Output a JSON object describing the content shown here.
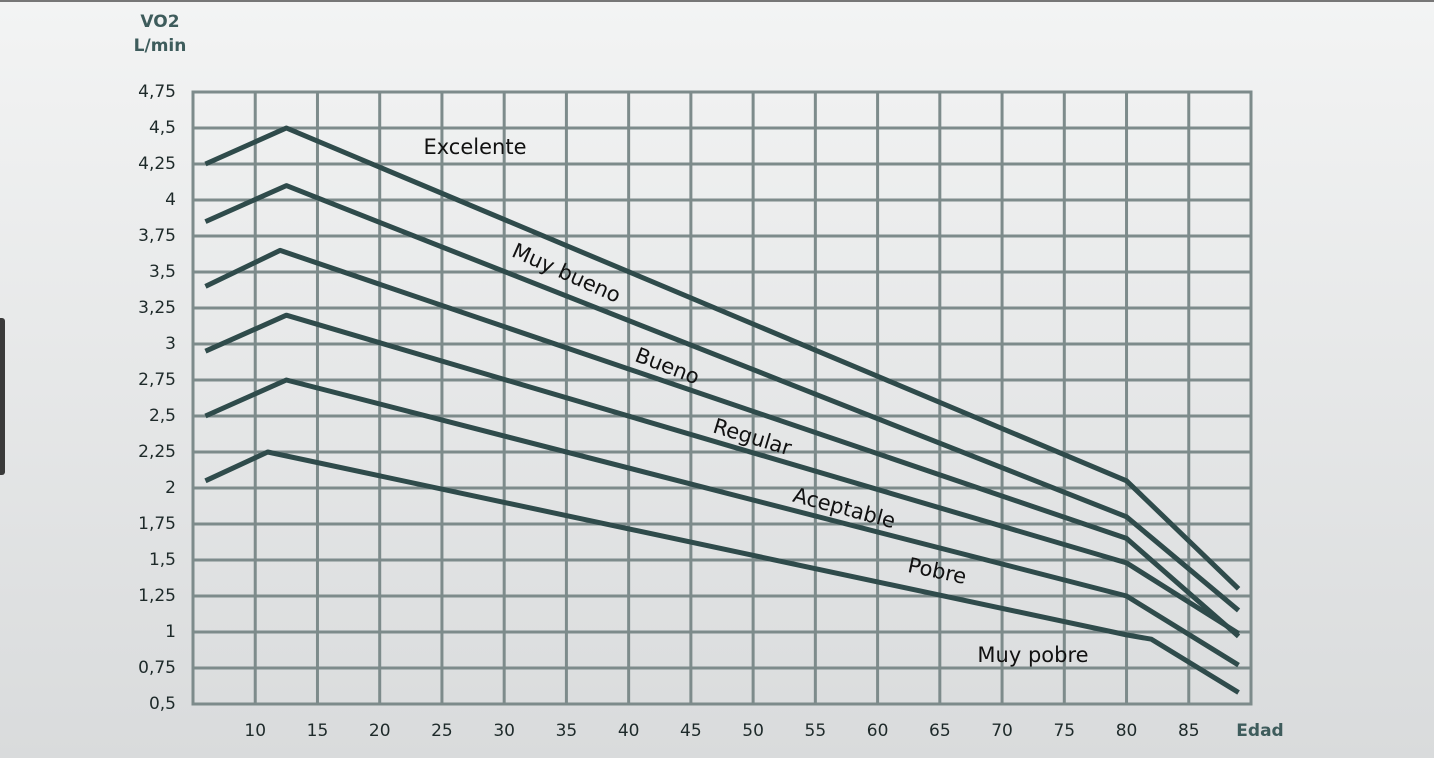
{
  "chart_data": {
    "type": "line",
    "ylabel": [
      "VO2",
      "L/min"
    ],
    "xlabel": "Edad",
    "xlim": [
      5,
      90
    ],
    "xticks": [
      10,
      15,
      20,
      25,
      30,
      35,
      40,
      45,
      50,
      55,
      60,
      65,
      70,
      75,
      80,
      85
    ],
    "ylim": [
      0.5,
      4.75
    ],
    "yticks": [
      {
        "value": 0.5,
        "label": "0,5"
      },
      {
        "value": 0.75,
        "label": "0,75"
      },
      1,
      {
        "value": 1.25,
        "label": "1,25"
      },
      {
        "value": 1.5,
        "label": "1,5"
      },
      {
        "value": 1.75,
        "label": "1,75"
      },
      2,
      {
        "value": 2.25,
        "label": "2,25"
      },
      {
        "value": 2.5,
        "label": "2,5"
      },
      {
        "value": 2.75,
        "label": "2,75"
      },
      3,
      {
        "value": 3.25,
        "label": "3,25"
      },
      {
        "value": 3.5,
        "label": "3,5"
      },
      {
        "value": 3.75,
        "label": "3,75"
      },
      4,
      {
        "value": 4.25,
        "label": "4,25"
      },
      {
        "value": 4.5,
        "label": "4,5"
      },
      {
        "value": 4.75,
        "label": "4,75"
      }
    ],
    "grid": true,
    "series": [
      {
        "color": "#2f4b4b",
        "x": [
          6,
          12.5,
          80,
          89
        ],
        "values": [
          4.25,
          4.5,
          2.05,
          1.3
        ]
      },
      {
        "color": "#2f4b4b",
        "x": [
          6,
          12.5,
          80,
          89
        ],
        "values": [
          3.85,
          4.1,
          1.8,
          1.15
        ]
      },
      {
        "color": "#2f4b4b",
        "x": [
          6,
          12,
          80,
          89
        ],
        "values": [
          3.4,
          3.65,
          1.65,
          0.97
        ]
      },
      {
        "color": "#2f4b4b",
        "x": [
          6,
          12.5,
          80,
          89
        ],
        "values": [
          2.95,
          3.2,
          1.48,
          0.99
        ]
      },
      {
        "color": "#2f4b4b",
        "x": [
          6,
          12.5,
          80,
          89
        ],
        "values": [
          2.5,
          2.75,
          1.25,
          0.77
        ]
      },
      {
        "color": "#2f4b4b",
        "x": [
          6,
          11,
          80,
          82,
          89
        ],
        "values": [
          2.05,
          2.25,
          0.98,
          0.95,
          0.58
        ]
      }
    ],
    "annotations": [
      "Excelente",
      "Muy bueno",
      "Bueno",
      "Regular",
      "Aceptable",
      "Pobre",
      "Muy pobre"
    ]
  }
}
